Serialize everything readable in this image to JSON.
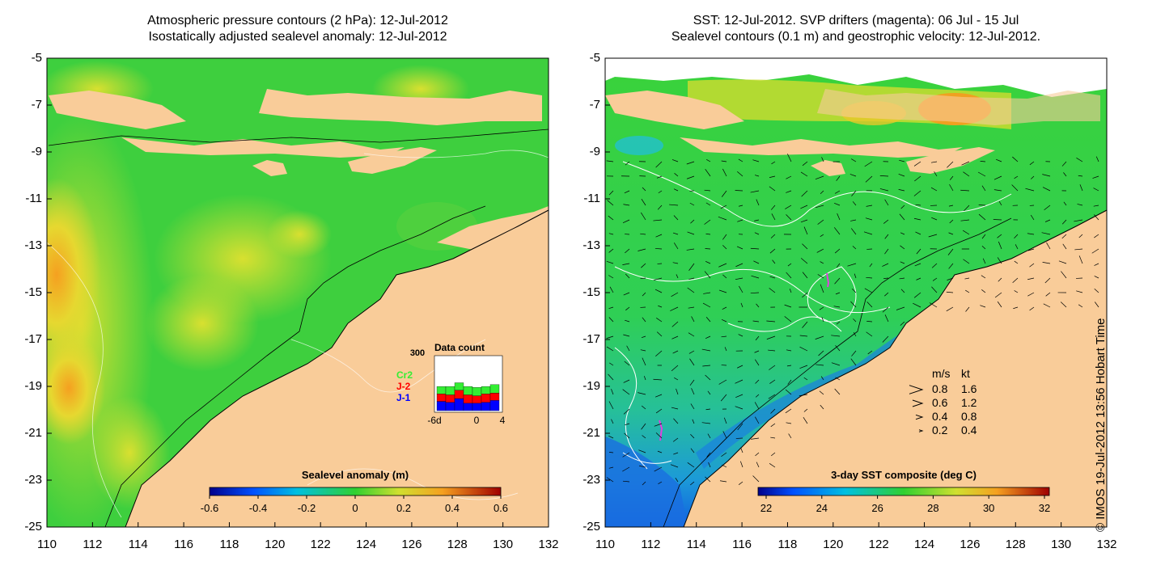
{
  "left_panel": {
    "title_line1": "Atmospheric pressure contours (2 hPa): 12-Jul-2012",
    "title_line2": "Isostatically adjusted sealevel anomaly: 12-Jul-2012",
    "colorbar_label": "Sealevel anomaly (m)",
    "colorbar_ticks": [
      "-0.6",
      "-0.4",
      "-0.2",
      "0",
      "0.2",
      "0.4",
      "0.6"
    ],
    "data_count": {
      "title": "Data count",
      "ymax_label": "300",
      "xticks": [
        "-6d",
        "0",
        "4"
      ],
      "series": [
        {
          "name": "Cr2",
          "color": "#33ee33"
        },
        {
          "name": "J-2",
          "color": "#ff0000"
        },
        {
          "name": "J-1",
          "color": "#0000ff"
        }
      ],
      "bars": [
        [
          40,
          40,
          50
        ],
        [
          45,
          40,
          45
        ],
        [
          40,
          45,
          65
        ],
        [
          45,
          45,
          40
        ],
        [
          45,
          40,
          40
        ],
        [
          40,
          45,
          45
        ],
        [
          45,
          40,
          55
        ]
      ]
    }
  },
  "right_panel": {
    "title_line1": "SST: 12-Jul-2012. SVP drifters (magenta): 06 Jul - 15 Jul",
    "title_line2": "Sealevel contours (0.1 m) and geostrophic velocity: 12-Jul-2012.",
    "colorbar_label": "3-day SST composite (deg C)",
    "colorbar_ticks": [
      "22",
      "24",
      "26",
      "28",
      "30",
      "32"
    ],
    "velocity_legend": {
      "header_ms": "m/s",
      "header_kt": "kt",
      "rows": [
        {
          "ms": "0.8",
          "kt": "1.6"
        },
        {
          "ms": "0.6",
          "kt": "1.2"
        },
        {
          "ms": "0.4",
          "kt": "0.8"
        },
        {
          "ms": "0.2",
          "kt": "0.4"
        }
      ]
    }
  },
  "axes": {
    "lat_ticks": [
      "-5",
      "-7",
      "-9",
      "-11",
      "-13",
      "-15",
      "-17",
      "-19",
      "-21",
      "-23",
      "-25"
    ],
    "lon_ticks": [
      "110",
      "112",
      "114",
      "116",
      "118",
      "120",
      "122",
      "124",
      "126",
      "128",
      "130",
      "132"
    ]
  },
  "watermark": "© IMOS 19-Jul-2012 13:56 Hobart Time",
  "colors": {
    "land": "#f9cc99",
    "ocean_green": "#3ecf3e",
    "anomaly_yellow": "#e8e030",
    "anomaly_orange": "#f5a020",
    "sst_cyan": "#22c0d0",
    "sst_blue": "#1060e0",
    "drifter": "#e040e0"
  }
}
